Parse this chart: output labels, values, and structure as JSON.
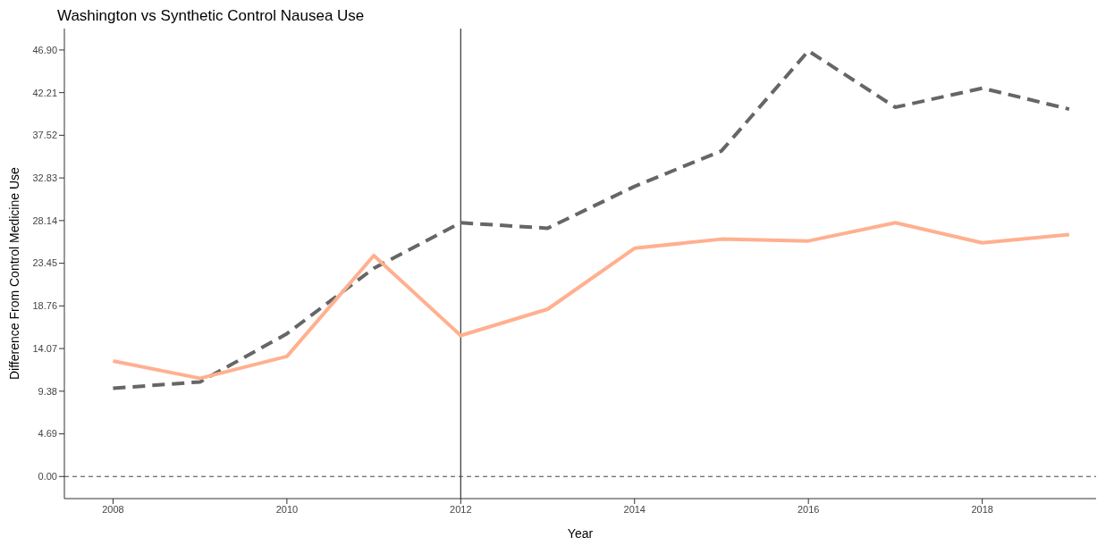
{
  "chart_data": {
    "type": "line",
    "title": "Washington vs Synthetic Control Nausea Use",
    "xlabel": "Year",
    "ylabel": "Difference From Control Medicine Use",
    "x": [
      2008,
      2009,
      2010,
      2011,
      2012,
      2013,
      2014,
      2015,
      2016,
      2017,
      2018,
      2019
    ],
    "series": [
      {
        "color": "#666666",
        "line_style": "dashed",
        "values": [
          9.7,
          10.4,
          15.7,
          22.9,
          27.9,
          27.3,
          31.9,
          35.8,
          46.8,
          40.6,
          42.7,
          40.4
        ]
      },
      {
        "color": "#ffb08f",
        "line_style": "solid",
        "values": [
          12.7,
          10.8,
          13.2,
          24.3,
          15.5,
          18.4,
          25.1,
          26.1,
          25.9,
          27.9,
          25.7,
          26.6
        ]
      }
    ],
    "xlim": [
      2007.44,
      2019.31
    ],
    "xticks": [
      2008,
      2010,
      2012,
      2014,
      2016,
      2018
    ],
    "ylim": [
      -2.43,
      49.25
    ],
    "yticks": [
      {
        "value": 0,
        "label": "0.00"
      },
      {
        "value": 4.69,
        "label": "4.69"
      },
      {
        "value": 9.38,
        "label": "9.38"
      },
      {
        "value": 14.07,
        "label": "14.07"
      },
      {
        "value": 18.76,
        "label": "18.76"
      },
      {
        "value": 23.45,
        "label": "23.45"
      },
      {
        "value": 28.14,
        "label": "28.14"
      },
      {
        "value": 32.83,
        "label": "32.83"
      },
      {
        "value": 37.52,
        "label": "37.52"
      },
      {
        "value": 42.21,
        "label": "42.21"
      },
      {
        "value": 46.9,
        "label": "46.90"
      }
    ],
    "ref_lines": [
      {
        "axis": "x",
        "value": 2012,
        "color": "#333333",
        "line_style": "solid"
      },
      {
        "axis": "y",
        "value": 0,
        "color": "#444444",
        "line_style": "dashed"
      }
    ],
    "grid": false,
    "legend": false,
    "marker": "none"
  }
}
